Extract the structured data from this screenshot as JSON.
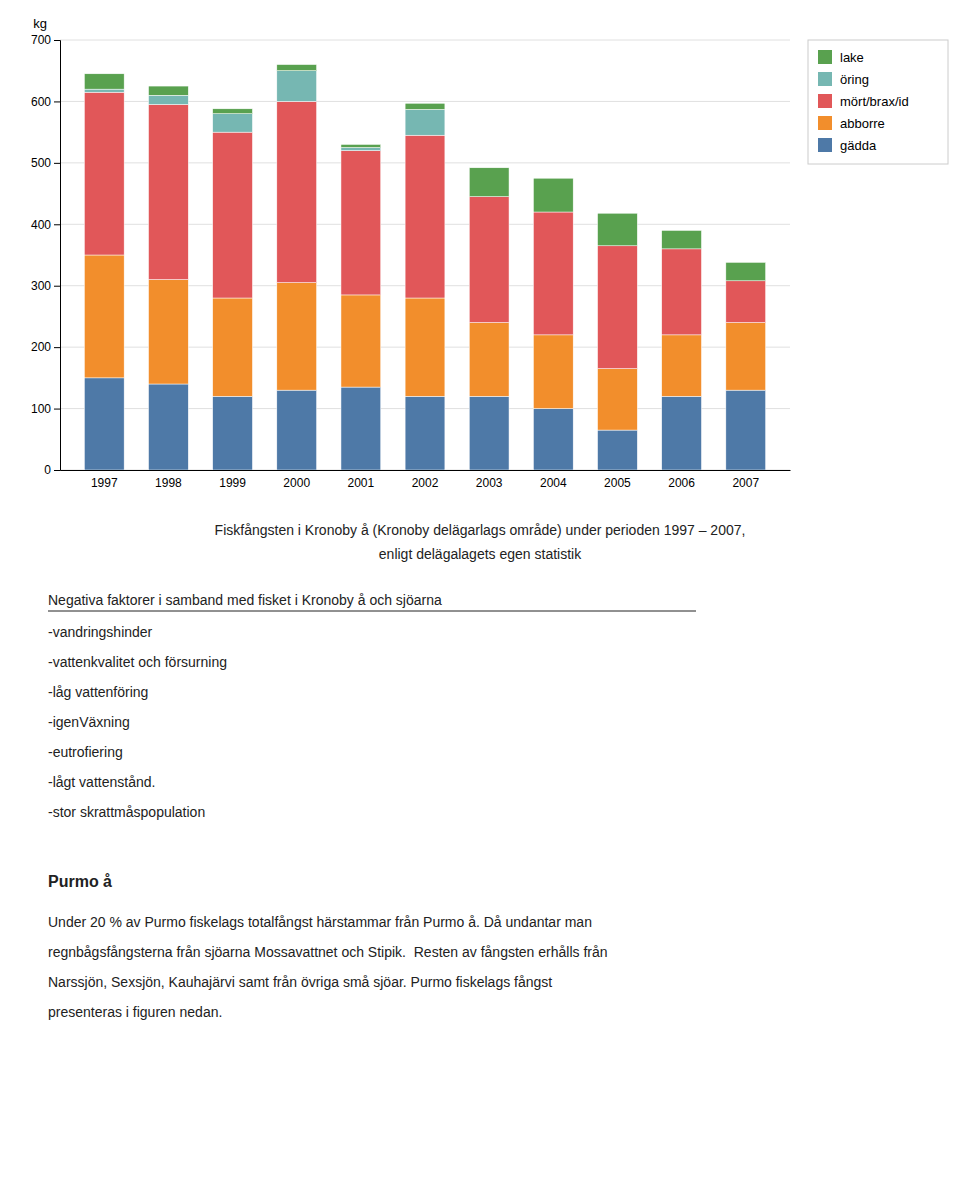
{
  "chart_data": {
    "type": "bar",
    "stacked": true,
    "y_label": "kg",
    "categories": [
      "1997",
      "1998",
      "1999",
      "2000",
      "2001",
      "2002",
      "2003",
      "2004",
      "2005",
      "2006",
      "2007"
    ],
    "series": [
      {
        "name": "gädda",
        "values": [
          150,
          140,
          120,
          130,
          135,
          120,
          120,
          100,
          65,
          120,
          130
        ]
      },
      {
        "name": "abborre",
        "values": [
          200,
          170,
          160,
          175,
          150,
          160,
          120,
          120,
          100,
          100,
          110
        ]
      },
      {
        "name": "mört/brax/id",
        "values": [
          265,
          285,
          270,
          295,
          235,
          265,
          205,
          200,
          200,
          140,
          68
        ]
      },
      {
        "name": "öring",
        "values": [
          5,
          15,
          30,
          50,
          5,
          42,
          0,
          0,
          0,
          0,
          0
        ]
      },
      {
        "name": "lake",
        "values": [
          25,
          15,
          8,
          10,
          5,
          10,
          47,
          55,
          53,
          30,
          30
        ]
      }
    ],
    "ylim": [
      0,
      700
    ],
    "yticks": [
      0,
      100,
      200,
      300,
      400,
      500,
      600,
      700
    ],
    "grid": true,
    "legend": "upper right"
  },
  "caption": [
    "Fiskfångsten i Kronoby å (Kronoby delägarlags område) under perioden 1997 – 2007,",
    "enligt delägalagets egen statistik"
  ],
  "section_title": "Negativa faktorer i samband med fisket i Kronoby å och sjöarna",
  "bullets": [
    "-vandringshinder",
    "-vattenkvalitet och försurning",
    "-låg vattenföring",
    "-igenVäxning",
    "-eutrofiering",
    "-lågt vattenstånd.",
    "-stor skrattmåspopulation"
  ],
  "purmo_title": "Purmo å",
  "purmo_lines": [
    "Under 20 % av Purmo fiskelags totalfångst härstammar från Purmo å. Då undantar man",
    "regnbågsfångsterna från sjöarna Mossavattnet och Stipik.  Resten av fångsten erhålls från",
    "Narssjön, Sexsjön, Kauhajärvi samt från övriga små sjöar. Purmo fiskelags fångst",
    "presenteras i figuren nedan."
  ]
}
